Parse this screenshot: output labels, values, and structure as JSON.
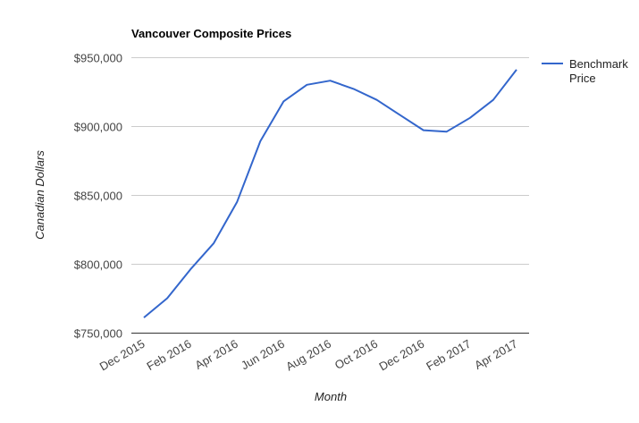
{
  "chart_data": {
    "type": "line",
    "title": "Vancouver Composite Prices",
    "xlabel": "Month",
    "ylabel": "Canadian Dollars",
    "x": [
      "Dec 2015",
      "Jan 2016",
      "Feb 2016",
      "Mar 2016",
      "Apr 2016",
      "May 2016",
      "Jun 2016",
      "Jul 2016",
      "Aug 2016",
      "Sep 2016",
      "Oct 2016",
      "Nov 2016",
      "Dec 2016",
      "Jan 2017",
      "Feb 2017",
      "Mar 2017",
      "Apr 2017"
    ],
    "x_tick_labels": [
      "Dec 2015",
      "Feb 2016",
      "Apr 2016",
      "Jun 2016",
      "Aug 2016",
      "Oct 2016",
      "Dec 2016",
      "Feb 2017",
      "Apr 2017"
    ],
    "series": [
      {
        "name": "Benchmark Price",
        "color": "#3366cc",
        "values": [
          761000,
          775000,
          796000,
          815000,
          845000,
          889000,
          918000,
          930000,
          933000,
          927000,
          919000,
          908000,
          897000,
          896000,
          906000,
          919000,
          941000
        ]
      }
    ],
    "ylim": [
      750000,
      950000
    ],
    "y_ticks": [
      750000,
      800000,
      850000,
      900000,
      950000
    ],
    "y_tick_labels": [
      "$750,000",
      "$800,000",
      "$850,000",
      "$900,000",
      "$950,000"
    ],
    "grid": true,
    "legend_position": "right",
    "legend_lines": [
      "Benchmark",
      "Price"
    ]
  }
}
